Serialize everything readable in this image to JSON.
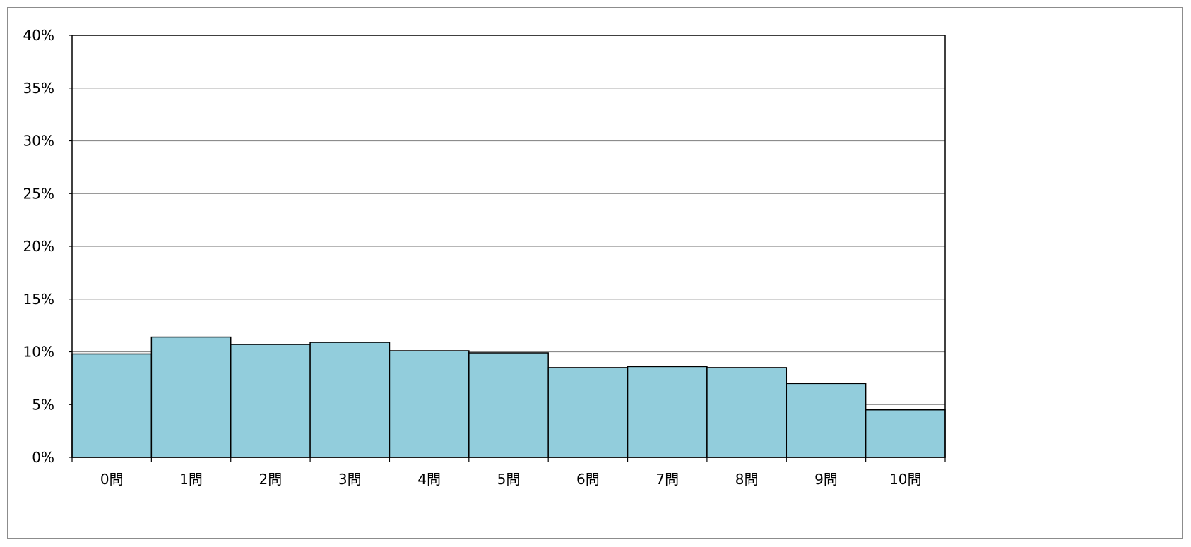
{
  "chart_data": {
    "type": "bar",
    "title": "",
    "xlabel": "",
    "ylabel": "",
    "categories": [
      "0問",
      "1問",
      "2問",
      "3問",
      "4問",
      "5問",
      "6問",
      "7問",
      "8問",
      "9問",
      "10問"
    ],
    "values": [
      9.8,
      11.4,
      10.7,
      10.9,
      10.1,
      9.9,
      8.5,
      8.6,
      8.5,
      7.0,
      4.5
    ],
    "value_unit": "%",
    "ylim": [
      0,
      40
    ],
    "yticks": [
      0,
      5,
      10,
      15,
      20,
      25,
      30,
      35,
      40
    ],
    "ytick_labels": [
      "0%",
      "5%",
      "10%",
      "15%",
      "20%",
      "25%",
      "30%",
      "35%",
      "40%"
    ],
    "grid": true,
    "legend": "none",
    "bar_color": "#92CDDC",
    "bar_edge_color": "#000000",
    "gridline_color": "#8c8c8c"
  }
}
